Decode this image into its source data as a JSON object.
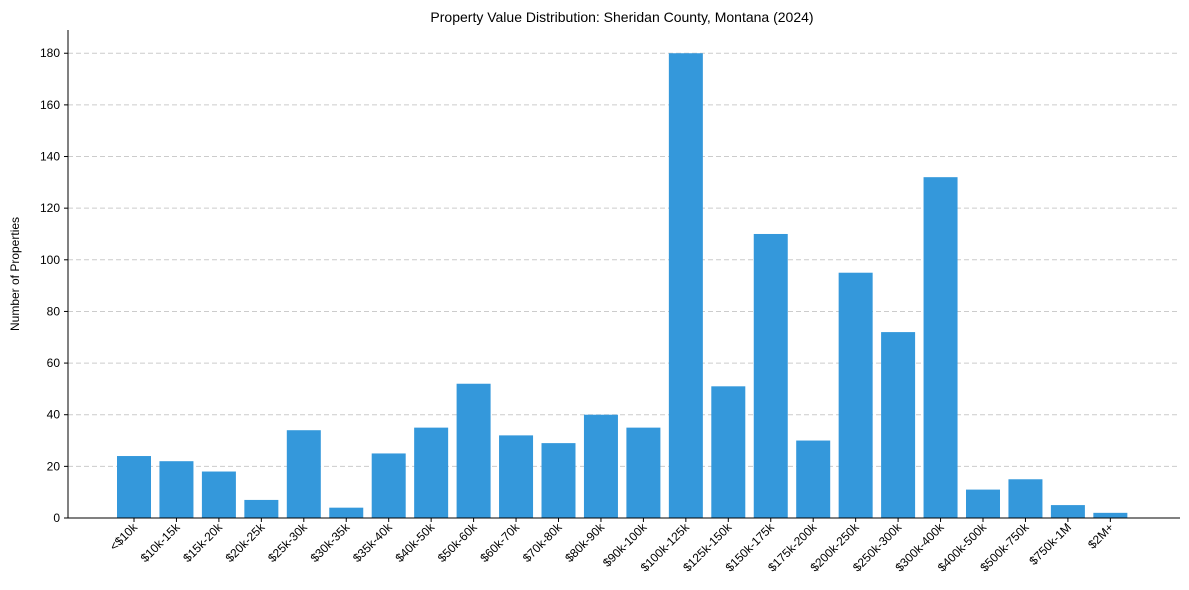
{
  "chart_data": {
    "type": "bar",
    "title": "Property Value Distribution: Sheridan County, Montana (2024)",
    "xlabel": "",
    "ylabel": "Number of Properties",
    "categories": [
      "<$10k",
      "$10k-15k",
      "$15k-20k",
      "$20k-25k",
      "$25k-30k",
      "$30k-35k",
      "$35k-40k",
      "$40k-50k",
      "$50k-60k",
      "$60k-70k",
      "$70k-80k",
      "$80k-90k",
      "$90k-100k",
      "$100k-125k",
      "$125k-150k",
      "$150k-175k",
      "$175k-200k",
      "$200k-250k",
      "$250k-300k",
      "$300k-400k",
      "$400k-500k",
      "$500k-750k",
      "$750k-1M",
      "$2M+"
    ],
    "values": [
      24,
      22,
      18,
      7,
      34,
      4,
      25,
      35,
      52,
      32,
      29,
      40,
      35,
      180,
      51,
      110,
      30,
      95,
      72,
      132,
      11,
      15,
      5,
      2
    ],
    "ylim": [
      0,
      189
    ],
    "yticks": [
      0,
      20,
      40,
      60,
      80,
      100,
      120,
      140,
      160,
      180
    ],
    "grid": "y-dashed",
    "bar_color": "#3498db"
  }
}
